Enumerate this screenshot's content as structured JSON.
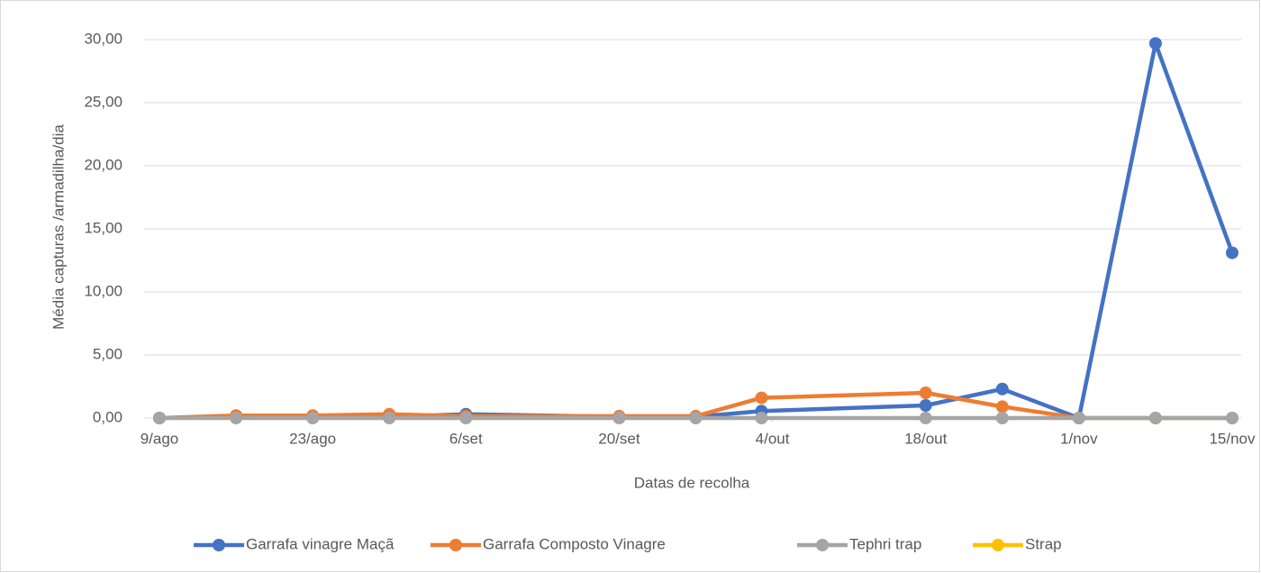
{
  "chart_data": {
    "type": "line",
    "x_label": "Datas de recolha",
    "y_label": "Média capturas /armadilha/dia",
    "x": [
      "08-09",
      "08-16",
      "08-23",
      "08-30",
      "09-06",
      "09-20",
      "09-27",
      "10-03",
      "10-18",
      "10-25",
      "11-01",
      "11-08",
      "11-15"
    ],
    "series": [
      {
        "name": "Garrafa vinagre Maçã",
        "color": "#4472c4",
        "values": [
          0,
          0.1,
          0.1,
          0.1,
          0.3,
          0.1,
          0.1,
          0.55,
          1.0,
          2.3,
          0,
          29.7,
          13.1
        ]
      },
      {
        "name": "Garrafa Composto Vinagre",
        "color": "#ed7d31",
        "values": [
          0,
          0.2,
          0.2,
          0.3,
          0.15,
          0.15,
          0.15,
          1.6,
          2.0,
          0.9,
          0,
          0,
          0
        ]
      },
      {
        "name": "Tephri trap",
        "color": "#a5a5a5",
        "values": [
          0,
          0,
          0,
          0,
          0,
          0,
          0,
          0,
          0,
          0,
          0,
          0,
          0
        ]
      },
      {
        "name": "Strap",
        "color": "#ffc000",
        "values": [
          null,
          null,
          null,
          null,
          null,
          null,
          null,
          null,
          null,
          null,
          null,
          null,
          null
        ]
      }
    ],
    "xlim": [
      "08-09",
      "11-15"
    ],
    "xticks": [
      {
        "value": "08-09",
        "label": "9/ago"
      },
      {
        "value": "08-23",
        "label": "23/ago"
      },
      {
        "value": "09-06",
        "label": "6/set"
      },
      {
        "value": "09-20",
        "label": "20/set"
      },
      {
        "value": "10-04",
        "label": "4/out"
      },
      {
        "value": "10-18",
        "label": "18/out"
      },
      {
        "value": "11-01",
        "label": "1/nov"
      },
      {
        "value": "11-15",
        "label": "15/nov"
      }
    ],
    "ylim": [
      0,
      30
    ],
    "yticks": [
      {
        "value": 0,
        "label": "0,00"
      },
      {
        "value": 5,
        "label": "5,00"
      },
      {
        "value": 10,
        "label": "10,00"
      },
      {
        "value": 15,
        "label": "15,00"
      },
      {
        "value": 20,
        "label": "20,00"
      },
      {
        "value": 25,
        "label": "25,00"
      },
      {
        "value": 30,
        "label": "30,00"
      }
    ],
    "grid": true,
    "legend": "bottom"
  }
}
